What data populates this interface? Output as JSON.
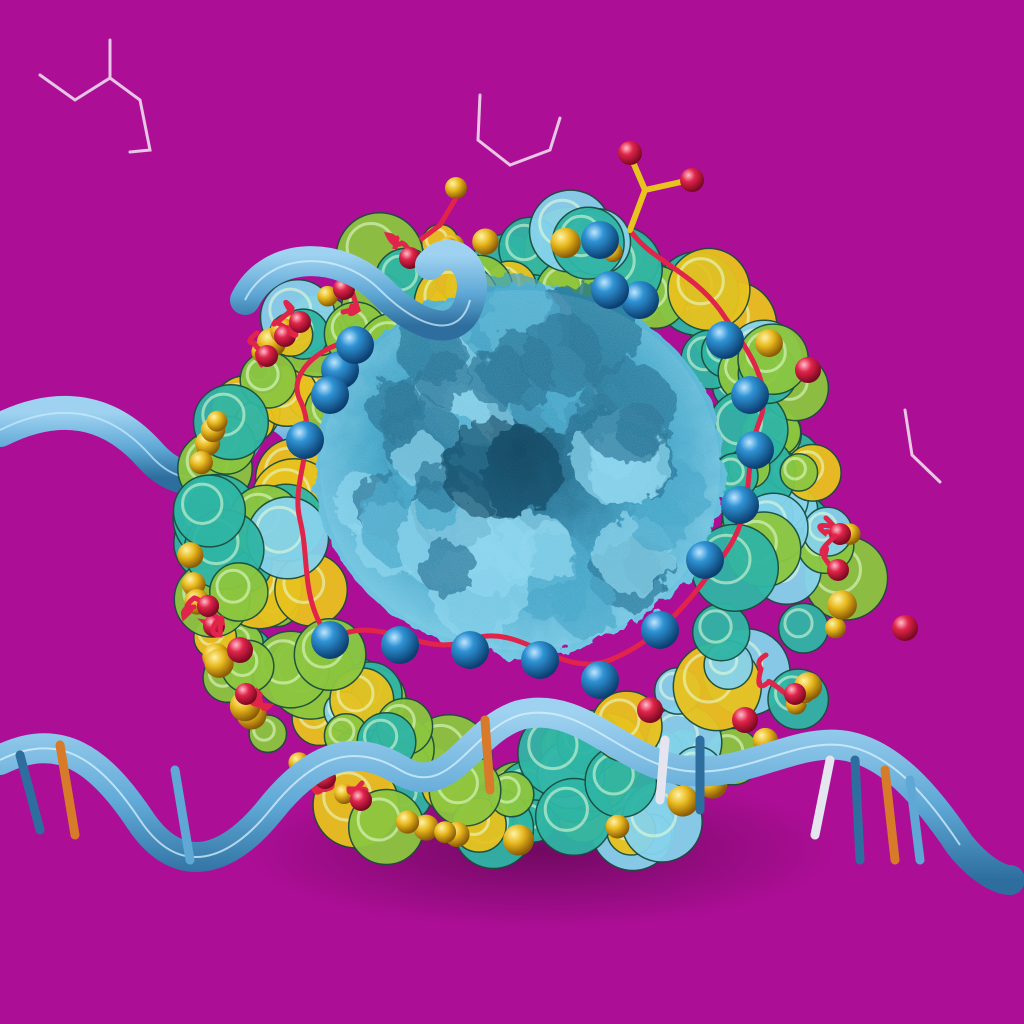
{
  "scene": {
    "subject": "protein-complex-with-dna-helix",
    "background_color": "#AD0E96",
    "palette": {
      "core_blue": "#3FA3C6",
      "core_blue_light": "#86D3EC",
      "core_blue_dark": "#1E6E92",
      "protein_green": "#8CC63F",
      "protein_teal": "#2FB5A5",
      "protein_yellow": "#E8C21E",
      "bead_blue": "#1E7FC0",
      "atom_red": "#E0244A",
      "ribbon_blue": "#5FA8D6",
      "ribbon_dark": "#2D6E9E",
      "strut_orange": "#D77A2A",
      "line_white": "#F2E6F2"
    }
  }
}
